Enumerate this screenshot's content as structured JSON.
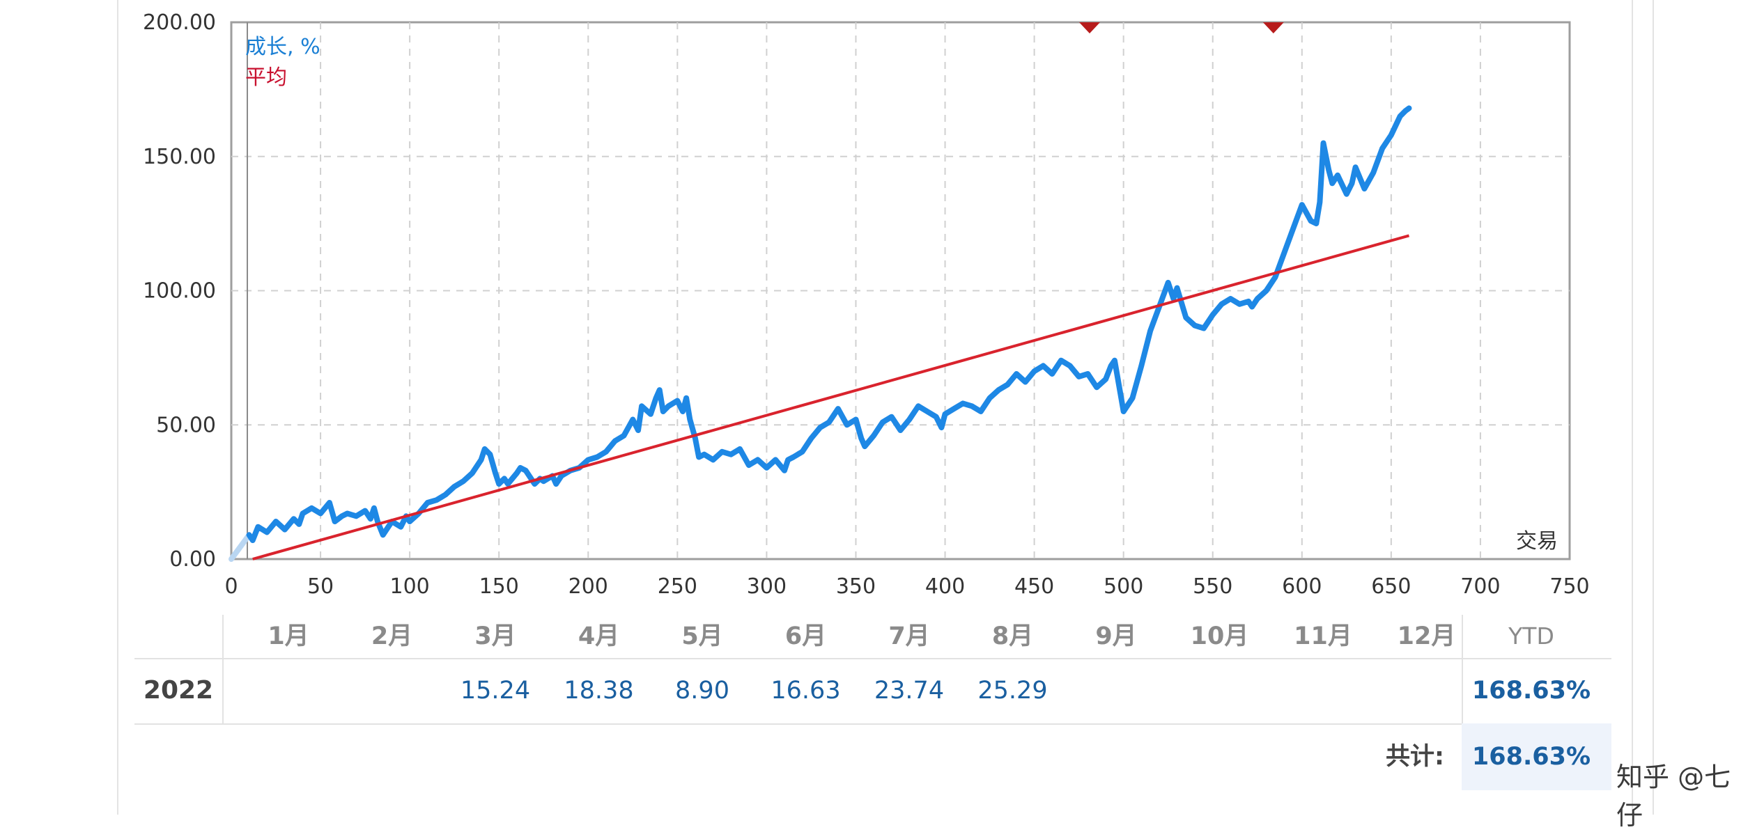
{
  "chart_data": {
    "type": "line",
    "legend": {
      "growth_label": "成长, %",
      "average_label": "平均"
    },
    "x_axis_label": "交易",
    "xlim": [
      0,
      750
    ],
    "ylim": [
      0,
      200
    ],
    "x_ticks": [
      "0",
      "50",
      "100",
      "150",
      "200",
      "250",
      "300",
      "350",
      "400",
      "450",
      "500",
      "550",
      "600",
      "650",
      "700",
      "750"
    ],
    "y_ticks": [
      "0.00",
      "50.00",
      "100.00",
      "150.00",
      "200.00"
    ],
    "grid": true,
    "colors": {
      "growth": "#1e88e5",
      "average": "#d9232d",
      "marker": "#b71c1c"
    },
    "markers_at_top": [
      481,
      584
    ],
    "series": [
      {
        "name": "成长, %",
        "x": [
          0,
          5,
          10,
          12,
          15,
          20,
          25,
          30,
          35,
          38,
          40,
          45,
          50,
          55,
          58,
          62,
          65,
          70,
          75,
          78,
          80,
          82,
          85,
          90,
          95,
          98,
          100,
          105,
          110,
          115,
          120,
          125,
          130,
          135,
          140,
          142,
          145,
          148,
          150,
          153,
          155,
          160,
          162,
          165,
          170,
          173,
          175,
          180,
          182,
          185,
          190,
          195,
          200,
          205,
          210,
          215,
          220,
          225,
          228,
          230,
          235,
          238,
          240,
          242,
          245,
          250,
          253,
          255,
          257,
          260,
          262,
          265,
          270,
          275,
          280,
          285,
          290,
          295,
          300,
          305,
          310,
          312,
          315,
          320,
          325,
          330,
          335,
          340,
          345,
          350,
          353,
          355,
          360,
          365,
          370,
          375,
          380,
          385,
          390,
          395,
          398,
          400,
          405,
          410,
          415,
          420,
          425,
          430,
          435,
          440,
          445,
          450,
          455,
          460,
          465,
          470,
          475,
          480,
          485,
          490,
          493,
          495,
          500,
          505,
          510,
          515,
          520,
          525,
          528,
          530,
          535,
          540,
          545,
          550,
          555,
          560,
          565,
          570,
          572,
          575,
          580,
          585,
          590,
          595,
          600,
          605,
          608,
          610,
          612,
          615,
          617,
          620,
          625,
          628,
          630,
          635,
          640,
          645,
          650,
          655,
          658,
          660
        ],
        "y": [
          0,
          4,
          9,
          7,
          12,
          10,
          14,
          11,
          15,
          13,
          17,
          19,
          17,
          21,
          14,
          16,
          17,
          16,
          18,
          15,
          19,
          14,
          9,
          14,
          12,
          16,
          14,
          17,
          21,
          22,
          24,
          27,
          29,
          32,
          37,
          41,
          39,
          32,
          28,
          30,
          28,
          32,
          34,
          33,
          28,
          30,
          29,
          31,
          28,
          31,
          33,
          34,
          37,
          38,
          40,
          44,
          46,
          52,
          48,
          57,
          54,
          60,
          63,
          55,
          57,
          59,
          55,
          60,
          52,
          45,
          38,
          39,
          37,
          40,
          39,
          41,
          35,
          37,
          34,
          37,
          33,
          37,
          38,
          40,
          45,
          49,
          51,
          56,
          50,
          52,
          45,
          42,
          46,
          51,
          53,
          48,
          52,
          57,
          55,
          53,
          49,
          54,
          56,
          58,
          57,
          55,
          60,
          63,
          65,
          69,
          66,
          70,
          72,
          69,
          74,
          72,
          68,
          69,
          64,
          67,
          72,
          74,
          55,
          60,
          72,
          85,
          94,
          103,
          97,
          101,
          90,
          87,
          86,
          91,
          95,
          97,
          95,
          96,
          94,
          97,
          100,
          105,
          114,
          123,
          132,
          126,
          125,
          133,
          155,
          145,
          140,
          143,
          136,
          140,
          146,
          138,
          144,
          153,
          158,
          165,
          167,
          168
        ]
      },
      {
        "name": "平均",
        "x": [
          12,
          660
        ],
        "y": [
          0,
          120.5
        ]
      }
    ]
  },
  "returns_table": {
    "months": [
      "1月",
      "2月",
      "3月",
      "4月",
      "5月",
      "6月",
      "7月",
      "8月",
      "9月",
      "10月",
      "11月",
      "12月"
    ],
    "ytd_header": "YTD",
    "rows": [
      {
        "year": "2022",
        "values": [
          "",
          "",
          "15.24",
          "18.38",
          "8.90",
          "16.63",
          "23.74",
          "25.29",
          "",
          "",
          "",
          ""
        ],
        "ytd": "168.63%"
      }
    ],
    "total_label": "共计:",
    "total_value": "168.63%"
  },
  "watermark": "知乎 @七 仔"
}
